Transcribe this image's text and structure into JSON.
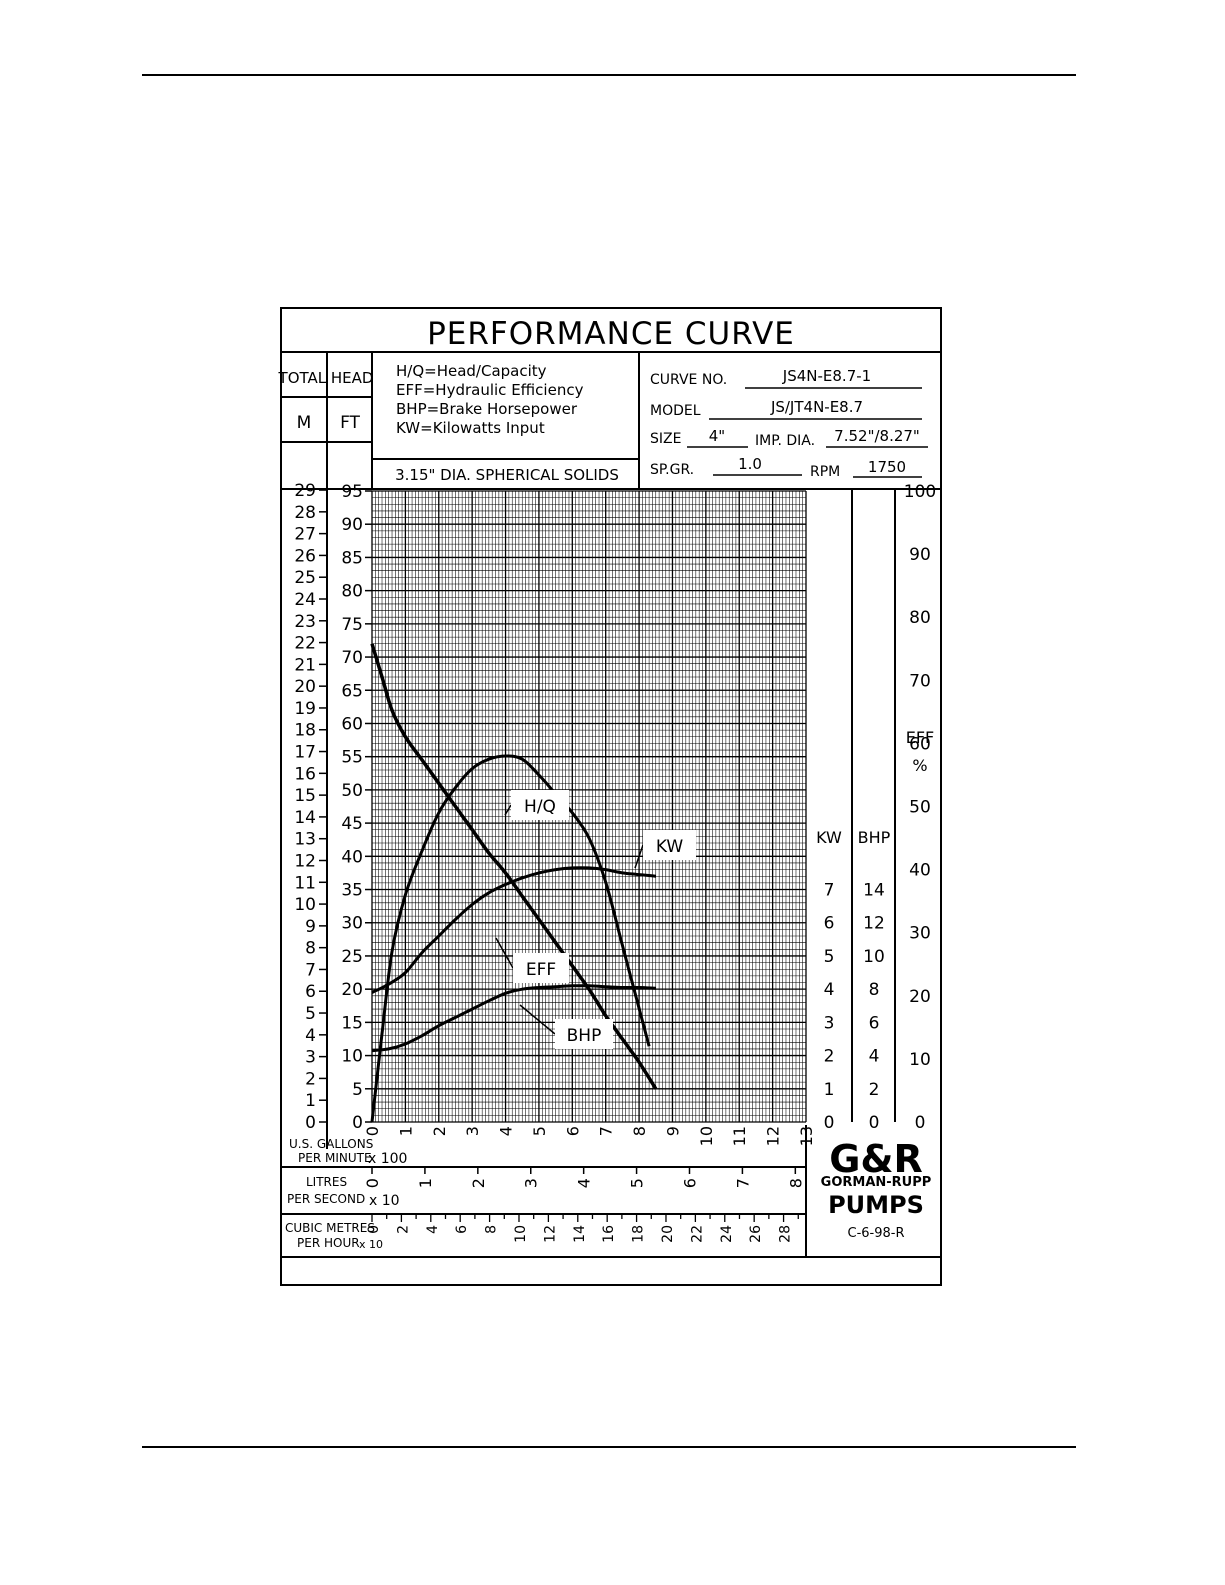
{
  "chart_data": {
    "type": "line",
    "title": "PERFORMANCE CURVE",
    "legend": [
      "H/Q=Head/Capacity",
      "EFF=Hydraulic Efficiency",
      "BHP=Brake Horsepower",
      "KW=Kilowatts Input"
    ],
    "solids_note": "3.15\" DIA. SPHERICAL SOLIDS",
    "info": {
      "curve_no_label": "CURVE NO.",
      "curve_no": "JS4N-E8.7-1",
      "model_label": "MODEL",
      "model": "JS/JT4N-E8.7",
      "size_label": "SIZE",
      "size": "4\"",
      "imp_dia_label": "IMP. DIA.",
      "imp_dia": "7.52\"/8.27\"",
      "spgr_label": "SP.GR.",
      "spgr": "1.0",
      "rpm_label": "RPM",
      "rpm": "1750"
    },
    "left_axes": {
      "header": "TOTAL HEAD",
      "m_label": "M",
      "ft_label": "FT",
      "m_ticks": [
        0,
        1,
        2,
        3,
        4,
        5,
        6,
        7,
        8,
        9,
        10,
        11,
        12,
        13,
        14,
        15,
        16,
        17,
        18,
        19,
        20,
        21,
        22,
        23,
        24,
        25,
        26,
        27,
        28,
        29
      ],
      "ft_ticks": [
        0,
        5,
        10,
        15,
        20,
        25,
        30,
        35,
        40,
        45,
        50,
        55,
        60,
        65,
        70,
        75,
        80,
        85,
        90,
        95
      ],
      "ylim_ft": [
        0,
        95
      ]
    },
    "right_axes": {
      "kw": {
        "label": "KW",
        "ticks": [
          0,
          1,
          2,
          3,
          4,
          5,
          6,
          7
        ],
        "range": [
          0,
          19
        ]
      },
      "bhp": {
        "label": "BHP",
        "ticks": [
          0,
          2,
          4,
          6,
          8,
          10,
          12,
          14
        ],
        "range": [
          0,
          38
        ]
      },
      "eff": {
        "label": "EFF",
        "unit": "%",
        "ticks": [
          0,
          10,
          20,
          30,
          40,
          50,
          60,
          70,
          80,
          90,
          100
        ],
        "range": [
          0,
          100
        ]
      }
    },
    "x_axes": {
      "gpm": {
        "label_line1": "U.S. GALLONS",
        "label_line2": "PER MINUTE",
        "multiplier": "x 100",
        "ticks": [
          0,
          1,
          2,
          3,
          4,
          5,
          6,
          7,
          8,
          9,
          10,
          11,
          12,
          13
        ],
        "xlim": [
          0,
          13
        ]
      },
      "lps": {
        "label_line1": "LITRES",
        "label_line2": "PER SECOND",
        "multiplier": "x 10",
        "ticks": [
          0,
          1,
          2,
          3,
          4,
          5,
          6,
          7,
          8
        ]
      },
      "cmh": {
        "label_line1": "CUBIC METRES",
        "label_line2": "PER HOUR",
        "multiplier": "x 10",
        "ticks": [
          0,
          2,
          4,
          6,
          8,
          10,
          12,
          14,
          16,
          18,
          20,
          22,
          24,
          26,
          28
        ]
      }
    },
    "series": [
      {
        "name": "H/Q",
        "axis": "ft",
        "x": [
          0,
          0.3,
          0.6,
          1.0,
          1.5,
          2.0,
          2.5,
          3.0,
          3.5,
          4.0,
          4.5,
          5.0,
          5.5,
          6.0,
          6.5,
          7.0,
          7.5,
          8.0,
          8.5
        ],
        "y": [
          72,
          67,
          62,
          58,
          54.5,
          51,
          47.5,
          44,
          40.5,
          37.5,
          34,
          30.5,
          27,
          23.5,
          20,
          16,
          12.5,
          9,
          5
        ]
      },
      {
        "name": "KW",
        "axis": "kw",
        "x": [
          0,
          0.5,
          1.0,
          1.5,
          2.0,
          2.5,
          3.0,
          3.5,
          4.0,
          4.5,
          5.0,
          5.5,
          6.0,
          6.5,
          7.0,
          7.5,
          8.0,
          8.5
        ],
        "y": [
          3.9,
          4.15,
          4.5,
          5.1,
          5.6,
          6.1,
          6.55,
          6.9,
          7.15,
          7.35,
          7.5,
          7.6,
          7.65,
          7.65,
          7.6,
          7.5,
          7.45,
          7.4
        ]
      },
      {
        "name": "EFF",
        "axis": "eff",
        "x": [
          0,
          0.3,
          0.6,
          1.0,
          1.5,
          2.0,
          2.5,
          3.0,
          3.5,
          4.0,
          4.5,
          5.0,
          5.5,
          6.0,
          6.5,
          7.0,
          7.5,
          8.0,
          8.3
        ],
        "y": [
          0,
          14,
          27,
          36,
          43,
          49,
          53,
          56,
          57.5,
          58,
          57.5,
          55,
          52,
          49,
          45,
          38,
          28,
          18,
          12
        ]
      },
      {
        "name": "BHP",
        "axis": "bhp",
        "x": [
          0,
          0.5,
          1.0,
          1.5,
          2.0,
          2.5,
          3.0,
          3.5,
          4.0,
          4.5,
          5.0,
          5.5,
          6.0,
          6.5,
          7.0,
          7.5,
          8.0,
          8.5
        ],
        "y": [
          4.3,
          4.4,
          4.7,
          5.2,
          5.8,
          6.3,
          6.8,
          7.3,
          7.75,
          8.0,
          8.1,
          8.15,
          8.2,
          8.2,
          8.15,
          8.1,
          8.1,
          8.05
        ]
      }
    ],
    "curve_labels": [
      "H/Q",
      "KW",
      "EFF",
      "BHP"
    ],
    "logo": {
      "mark": "G&R",
      "line1": "GORMAN-RUPP",
      "line2": "PUMPS"
    },
    "drawing_no": "C-6-98-R"
  }
}
